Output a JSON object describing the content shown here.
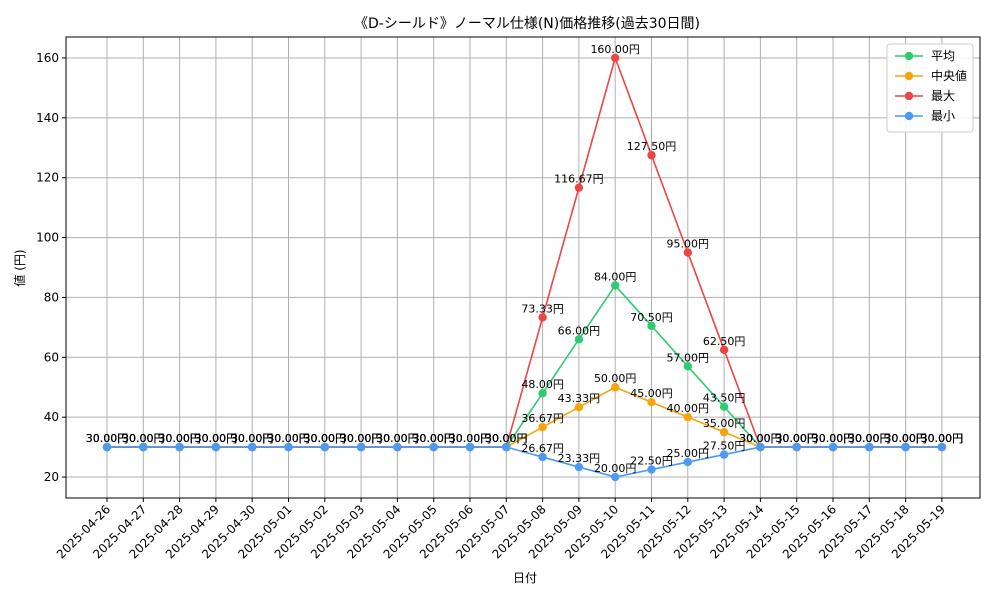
{
  "chart_data": {
    "type": "line",
    "title": "《D-シールド》ノーマル仕様(N)価格推移(過去30日間)",
    "xlabel": "日付",
    "ylabel": "値 (円)",
    "categories": [
      "2025-04-26",
      "2025-04-27",
      "2025-04-28",
      "2025-04-29",
      "2025-04-30",
      "2025-05-01",
      "2025-05-02",
      "2025-05-03",
      "2025-05-04",
      "2025-05-05",
      "2025-05-06",
      "2025-05-07",
      "2025-05-08",
      "2025-05-09",
      "2025-05-10",
      "2025-05-11",
      "2025-05-12",
      "2025-05-13",
      "2025-05-14",
      "2025-05-15",
      "2025-05-16",
      "2025-05-17",
      "2025-05-18",
      "2025-05-19"
    ],
    "yticks": [
      20,
      40,
      60,
      80,
      100,
      120,
      140,
      160
    ],
    "ylim": [
      13,
      167
    ],
    "grid": true,
    "legend_position": "top-right",
    "label_suffix": "円",
    "series": [
      {
        "name": "平均",
        "color": "#2ecc71",
        "values": [
          30,
          30,
          30,
          30,
          30,
          30,
          30,
          30,
          30,
          30,
          30,
          30,
          48,
          66,
          84,
          70.5,
          57,
          43.5,
          30,
          30,
          30,
          30,
          30,
          30
        ]
      },
      {
        "name": "中央値",
        "color": "#f5a50a",
        "values": [
          30,
          30,
          30,
          30,
          30,
          30,
          30,
          30,
          30,
          30,
          30,
          30,
          36.67,
          43.33,
          50,
          45,
          40,
          35,
          30,
          30,
          30,
          30,
          30,
          30
        ]
      },
      {
        "name": "最大",
        "color": "#ef4444",
        "values": [
          30,
          30,
          30,
          30,
          30,
          30,
          30,
          30,
          30,
          30,
          30,
          30,
          73.33,
          116.67,
          160,
          127.5,
          95,
          62.5,
          30,
          30,
          30,
          30,
          30,
          30
        ]
      },
      {
        "name": "最小",
        "color": "#4b9bf5",
        "values": [
          30,
          30,
          30,
          30,
          30,
          30,
          30,
          30,
          30,
          30,
          30,
          30,
          26.67,
          23.33,
          20,
          22.5,
          25,
          27.5,
          30,
          30,
          30,
          30,
          30,
          30
        ]
      }
    ]
  }
}
